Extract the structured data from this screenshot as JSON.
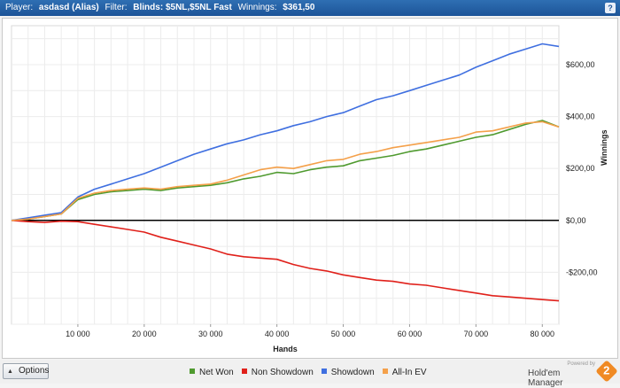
{
  "header": {
    "player_label": "Player:",
    "player_value": "asdasd (Alias)",
    "filter_label": "Filter:",
    "filter_value": "Blinds: $5NL,$5NL Fast",
    "winnings_label": "Winnings:",
    "winnings_value": "$361,50",
    "help_label": "?"
  },
  "footer": {
    "options_label": "Options",
    "powered_by": "Powered by",
    "brand_name": "Hold'em Manager",
    "brand_logo": "2"
  },
  "colors": {
    "net_won": "#4f9a2f",
    "non_showdown": "#e0201a",
    "showdown": "#3f6fe0",
    "all_in_ev": "#f4a04a"
  },
  "chart_data": {
    "type": "line",
    "xlabel": "Hands",
    "ylabel": "Winnings",
    "xlim": [
      0,
      82500
    ],
    "ylim": [
      -400,
      750
    ],
    "x_ticks": [
      10000,
      20000,
      30000,
      40000,
      50000,
      60000,
      70000,
      80000
    ],
    "x_tick_labels": [
      "10 000",
      "20 000",
      "30 000",
      "40 000",
      "50 000",
      "60 000",
      "70 000",
      "80 000"
    ],
    "y_ticks": [
      600,
      400,
      200,
      0,
      -200
    ],
    "y_tick_labels": [
      "$600,00",
      "$400,00",
      "$200,00",
      "$0,00",
      "-$200,00"
    ],
    "grid": true,
    "legend_position": "bottom",
    "x": [
      0,
      2500,
      5000,
      7500,
      10000,
      12500,
      15000,
      17500,
      20000,
      22500,
      25000,
      27500,
      30000,
      32500,
      35000,
      37500,
      40000,
      42500,
      45000,
      47500,
      50000,
      52500,
      55000,
      57500,
      60000,
      62500,
      65000,
      67500,
      70000,
      72500,
      75000,
      77500,
      80000,
      82500
    ],
    "series": [
      {
        "name": "Net Won",
        "color": "#4f9a2f",
        "values": [
          0,
          5,
          15,
          25,
          80,
          100,
          110,
          115,
          120,
          115,
          125,
          130,
          135,
          145,
          160,
          170,
          185,
          180,
          195,
          205,
          210,
          230,
          240,
          250,
          265,
          275,
          290,
          305,
          320,
          330,
          350,
          370,
          385,
          360
        ]
      },
      {
        "name": "Non Showdown",
        "color": "#e0201a",
        "values": [
          0,
          -5,
          -8,
          -3,
          -5,
          -15,
          -25,
          -35,
          -45,
          -65,
          -80,
          -95,
          -110,
          -130,
          -140,
          -145,
          -150,
          -170,
          -185,
          -195,
          -210,
          -220,
          -230,
          -235,
          -245,
          -250,
          -260,
          -270,
          -280,
          -290,
          -295,
          -300,
          -305,
          -310
        ]
      },
      {
        "name": "Showdown",
        "color": "#3f6fe0",
        "values": [
          0,
          10,
          20,
          30,
          90,
          120,
          140,
          160,
          180,
          205,
          230,
          255,
          275,
          295,
          310,
          330,
          345,
          365,
          380,
          400,
          415,
          440,
          465,
          480,
          500,
          520,
          540,
          560,
          590,
          615,
          640,
          660,
          680,
          670
        ]
      },
      {
        "name": "All-In EV",
        "color": "#f4a04a",
        "values": [
          0,
          5,
          15,
          25,
          85,
          105,
          115,
          120,
          125,
          120,
          130,
          135,
          140,
          155,
          175,
          195,
          205,
          200,
          215,
          230,
          235,
          255,
          265,
          280,
          290,
          300,
          310,
          320,
          340,
          345,
          360,
          375,
          380,
          360
        ]
      }
    ]
  }
}
